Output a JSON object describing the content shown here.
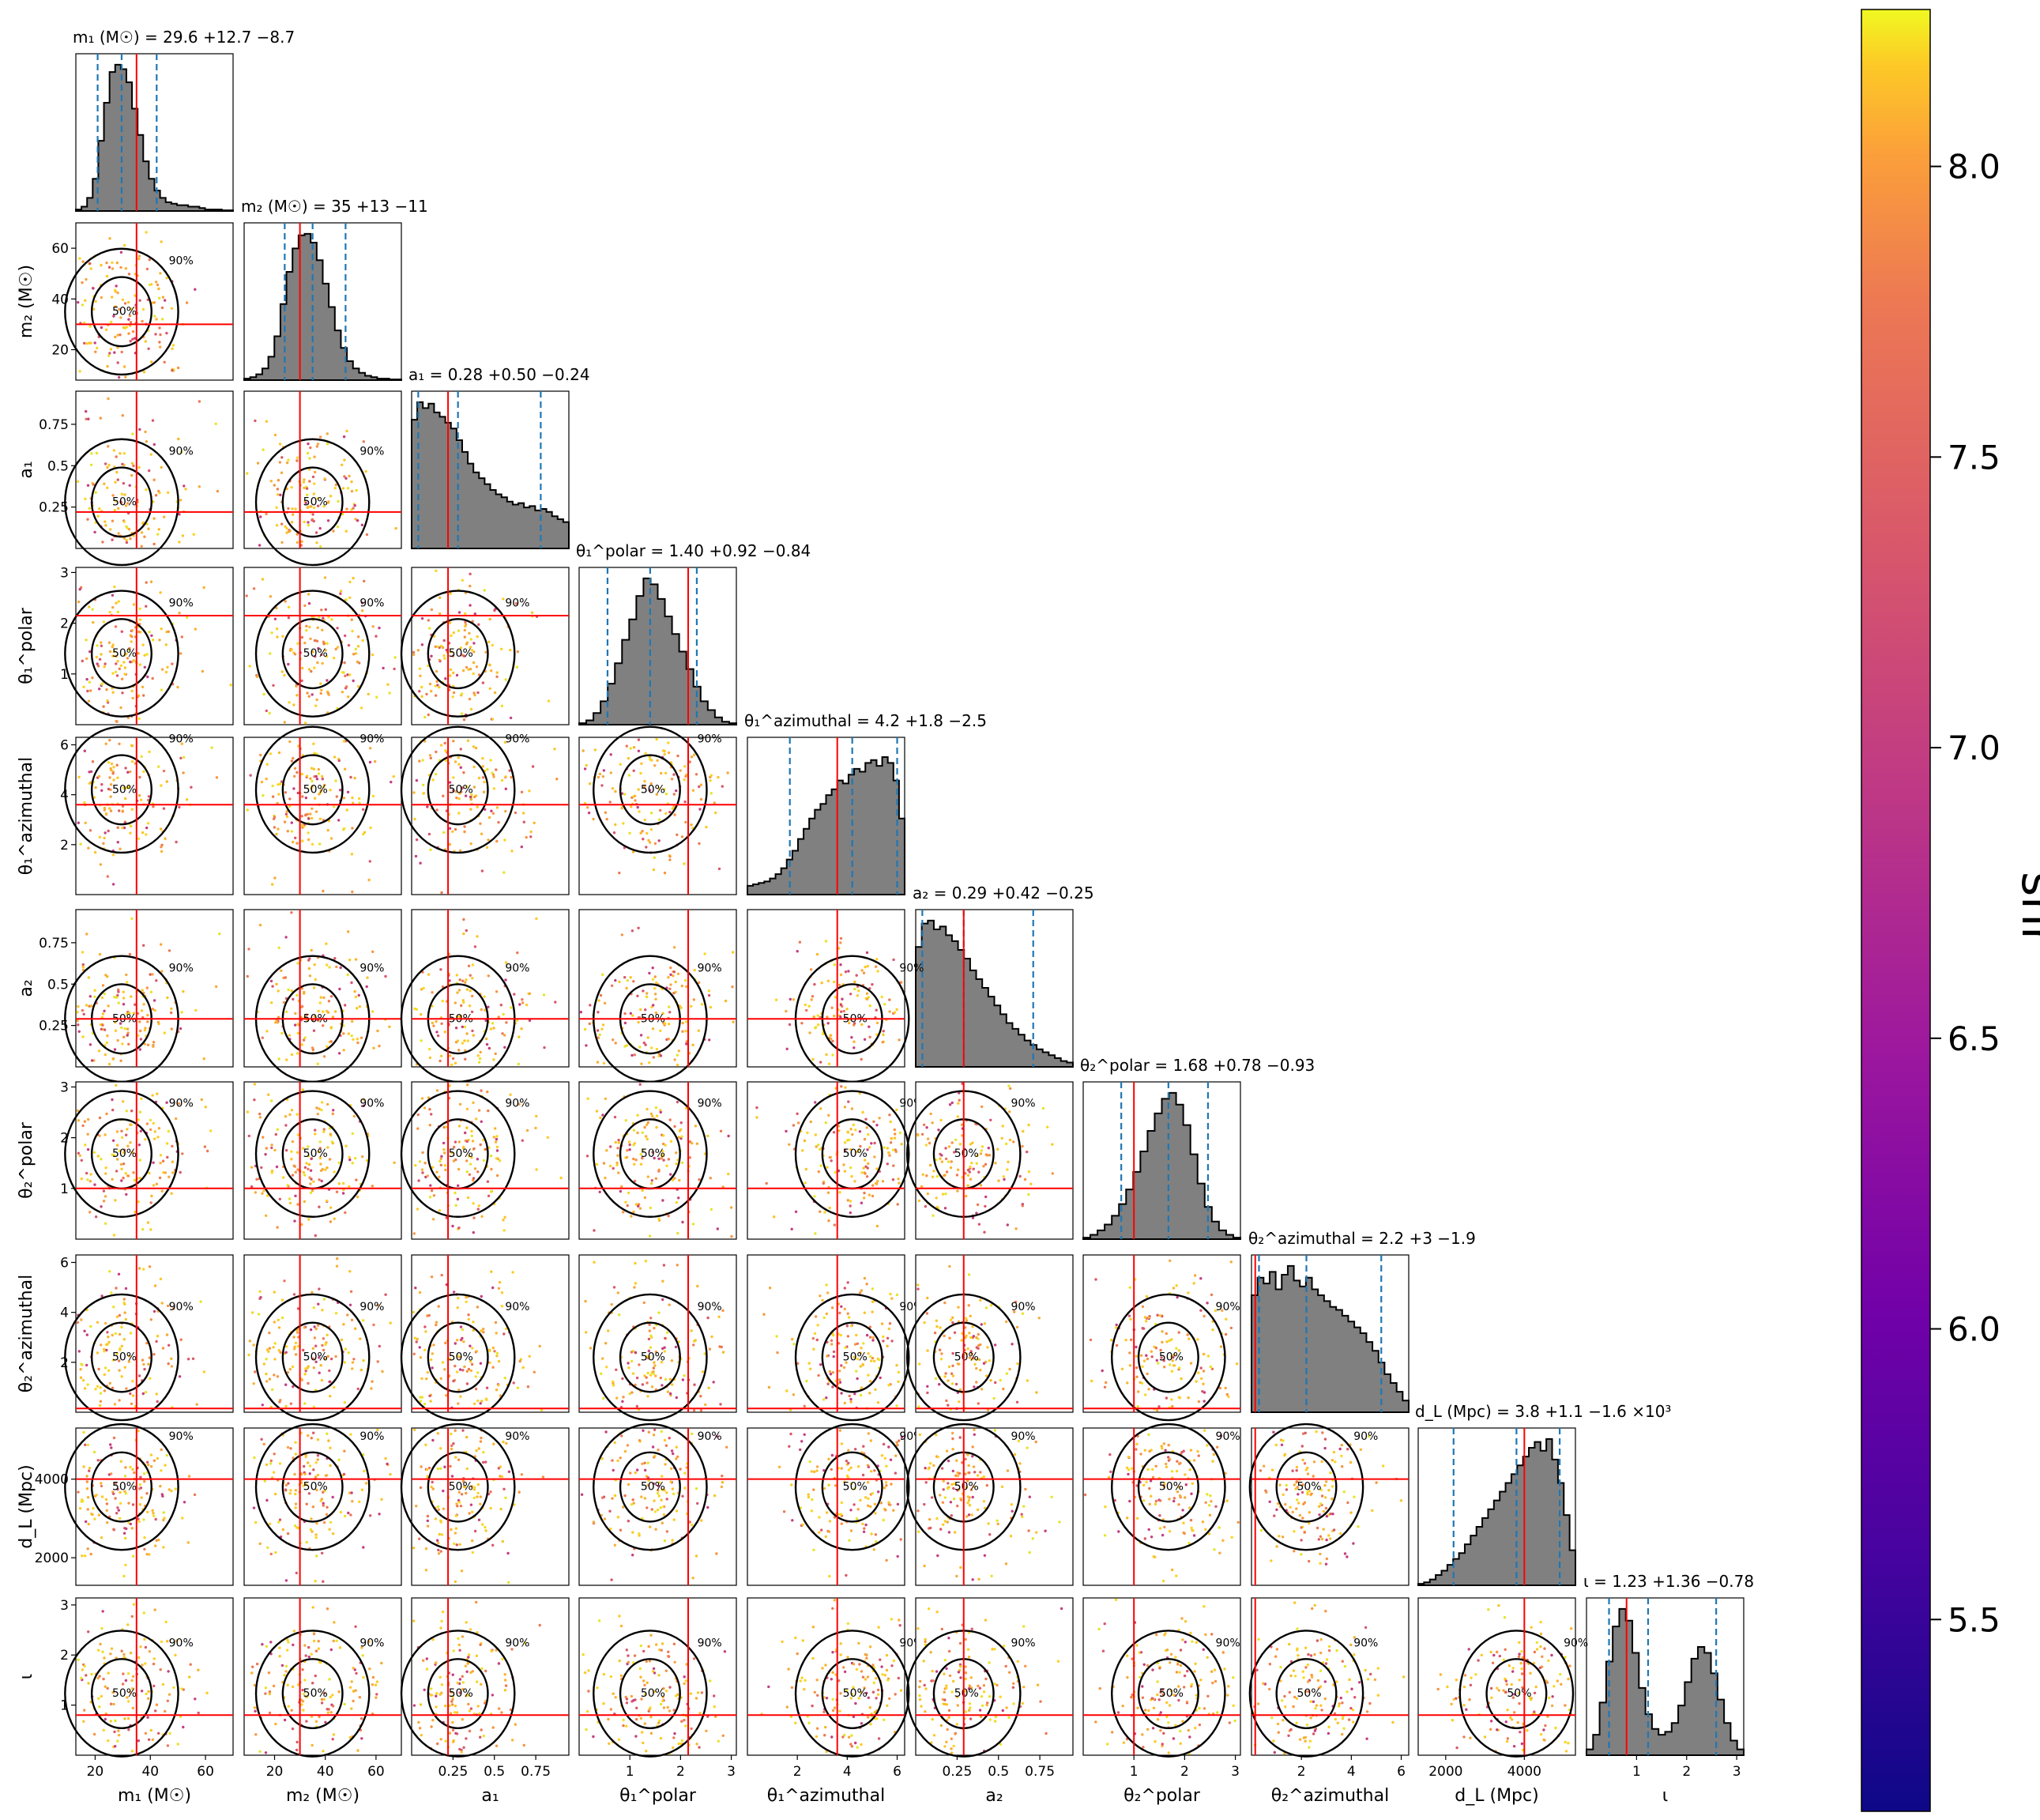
{
  "chart_data": {
    "type": "scatter",
    "description_kind": "corner",
    "params": [
      {
        "key": "m1",
        "label": "m₁ (M☉)",
        "title": "m₁ (M☉) = 29.6 +12.7 −8.7",
        "median": 29.6,
        "ci": [
          20.9,
          42.3
        ],
        "truth": 35,
        "range": [
          13,
          70
        ],
        "ticks": [
          20,
          40,
          60
        ],
        "hist": [
          1,
          3,
          9,
          22,
          48,
          74,
          95,
          100,
          97,
          88,
          70,
          52,
          34,
          22,
          14,
          9,
          6,
          5,
          4,
          4,
          3,
          3,
          2,
          1,
          1,
          1,
          0.5,
          0.5
        ]
      },
      {
        "key": "m2",
        "label": "m₂ (M☉)",
        "title": "m₂ (M☉) = 35 +13 −11",
        "median": 35,
        "ci": [
          24,
          48
        ],
        "truth": 30,
        "range": [
          8,
          70
        ],
        "ticks": [
          20,
          40,
          60
        ],
        "hist": [
          1,
          2,
          4,
          8,
          16,
          30,
          52,
          74,
          90,
          99,
          100,
          94,
          82,
          66,
          50,
          34,
          22,
          13,
          8,
          5,
          3,
          2,
          1,
          1,
          0.5,
          0.5
        ]
      },
      {
        "key": "a1",
        "label": "a₁",
        "title": "a₁ = 0.28 +0.50 −0.24",
        "median": 0.28,
        "ci": [
          0.04,
          0.78
        ],
        "truth": 0.22,
        "range": [
          0,
          0.95
        ],
        "ticks": [
          0.25,
          0.5,
          0.75
        ],
        "hist": [
          88,
          100,
          96,
          99,
          93,
          90,
          86,
          82,
          74,
          66,
          58,
          52,
          48,
          44,
          40,
          37,
          35,
          32,
          30,
          31,
          28,
          29,
          26,
          27,
          25,
          22,
          20,
          18
        ]
      },
      {
        "key": "t1p",
        "label": "θ₁^polar",
        "title": "θ₁^polar = 1.40 +0.92 −0.84",
        "median": 1.4,
        "ci": [
          0.56,
          2.32
        ],
        "truth": 2.15,
        "range": [
          0,
          3.1
        ],
        "ticks": [
          1,
          2,
          3
        ],
        "hist": [
          1,
          3,
          8,
          16,
          28,
          42,
          58,
          72,
          88,
          100,
          96,
          86,
          74,
          62,
          50,
          38,
          26,
          16,
          10,
          5,
          2,
          1
        ]
      },
      {
        "key": "t1a",
        "label": "θ₁^azimuthal",
        "title": "θ₁^azimuthal = 4.2 +1.8 −2.5",
        "median": 4.2,
        "ci": [
          1.7,
          6.0
        ],
        "truth": 3.6,
        "range": [
          0,
          6.3
        ],
        "ticks": [
          2,
          4,
          6
        ],
        "hist": [
          6,
          7,
          8,
          9,
          11,
          14,
          18,
          24,
          30,
          38,
          45,
          52,
          58,
          62,
          68,
          72,
          78,
          76,
          82,
          86,
          84,
          90,
          92,
          88,
          94,
          90,
          78,
          52
        ]
      },
      {
        "key": "a2",
        "label": "a₂",
        "title": "a₂ = 0.29 +0.42 −0.25",
        "median": 0.29,
        "ci": [
          0.04,
          0.71
        ],
        "truth": 0.29,
        "range": [
          0,
          0.95
        ],
        "ticks": [
          0.25,
          0.5,
          0.75
        ],
        "hist": [
          82,
          98,
          100,
          94,
          96,
          90,
          86,
          80,
          74,
          66,
          60,
          54,
          48,
          42,
          36,
          30,
          26,
          22,
          18,
          15,
          12,
          10,
          8,
          6,
          4,
          3
        ]
      },
      {
        "key": "t2p",
        "label": "θ₂^polar",
        "title": "θ₂^polar = 1.68 +0.78 −0.93",
        "median": 1.68,
        "ci": [
          0.75,
          2.46
        ],
        "truth": 1.0,
        "range": [
          0,
          3.1
        ],
        "ticks": [
          1,
          2,
          3
        ],
        "hist": [
          1,
          3,
          6,
          10,
          16,
          24,
          34,
          46,
          60,
          74,
          86,
          96,
          100,
          92,
          78,
          58,
          38,
          22,
          12,
          6,
          3,
          1
        ]
      },
      {
        "key": "t2a",
        "label": "θ₂^azimuthal",
        "title": "θ₂^azimuthal = 2.2 +3 −1.9",
        "median": 2.2,
        "ci": [
          0.3,
          5.2
        ],
        "truth": 0.15,
        "range": [
          0,
          6.3
        ],
        "ticks": [
          2,
          4,
          6
        ],
        "hist": [
          80,
          92,
          88,
          96,
          84,
          94,
          100,
          90,
          86,
          92,
          84,
          80,
          76,
          72,
          70,
          66,
          62,
          58,
          54,
          48,
          42,
          34,
          26,
          20,
          14,
          8
        ]
      },
      {
        "key": "dl",
        "label": "d_L (Mpc)",
        "title": "d_L (Mpc) = 3.8 +1.1 −1.6 ×10³",
        "median": 3800,
        "ci": [
          2200,
          4900
        ],
        "truth": 4000,
        "range": [
          1300,
          5300
        ],
        "ticks": [
          2000,
          4000
        ],
        "hist": [
          1,
          2,
          4,
          7,
          10,
          14,
          18,
          22,
          28,
          34,
          40,
          46,
          52,
          58,
          64,
          70,
          76,
          82,
          88,
          94,
          98,
          92,
          100,
          86,
          70,
          48,
          24
        ]
      },
      {
        "key": "iota",
        "label": "ι",
        "title": "ι = 1.23 +1.36 −0.78",
        "median": 1.23,
        "ci": [
          0.45,
          2.59
        ],
        "truth": 0.8,
        "range": [
          0,
          3.14
        ],
        "ticks": [
          1,
          2,
          3
        ],
        "hist": [
          4,
          14,
          36,
          64,
          88,
          100,
          92,
          70,
          46,
          28,
          18,
          14,
          16,
          22,
          34,
          50,
          66,
          74,
          70,
          56,
          38,
          22,
          10,
          4
        ]
      }
    ],
    "colorbar": {
      "label": "snr",
      "range": [
        5.17,
        8.27
      ],
      "ticks": [
        "5.5",
        "6.0",
        "6.5",
        "7.0",
        "7.5",
        "8.0"
      ],
      "colormap": "plasma"
    },
    "contour_labels": [
      "50%",
      "90%"
    ],
    "colors": {
      "truth": "#ff0000",
      "quantile": "#1f77b4",
      "hist_fill": "#808080"
    }
  }
}
